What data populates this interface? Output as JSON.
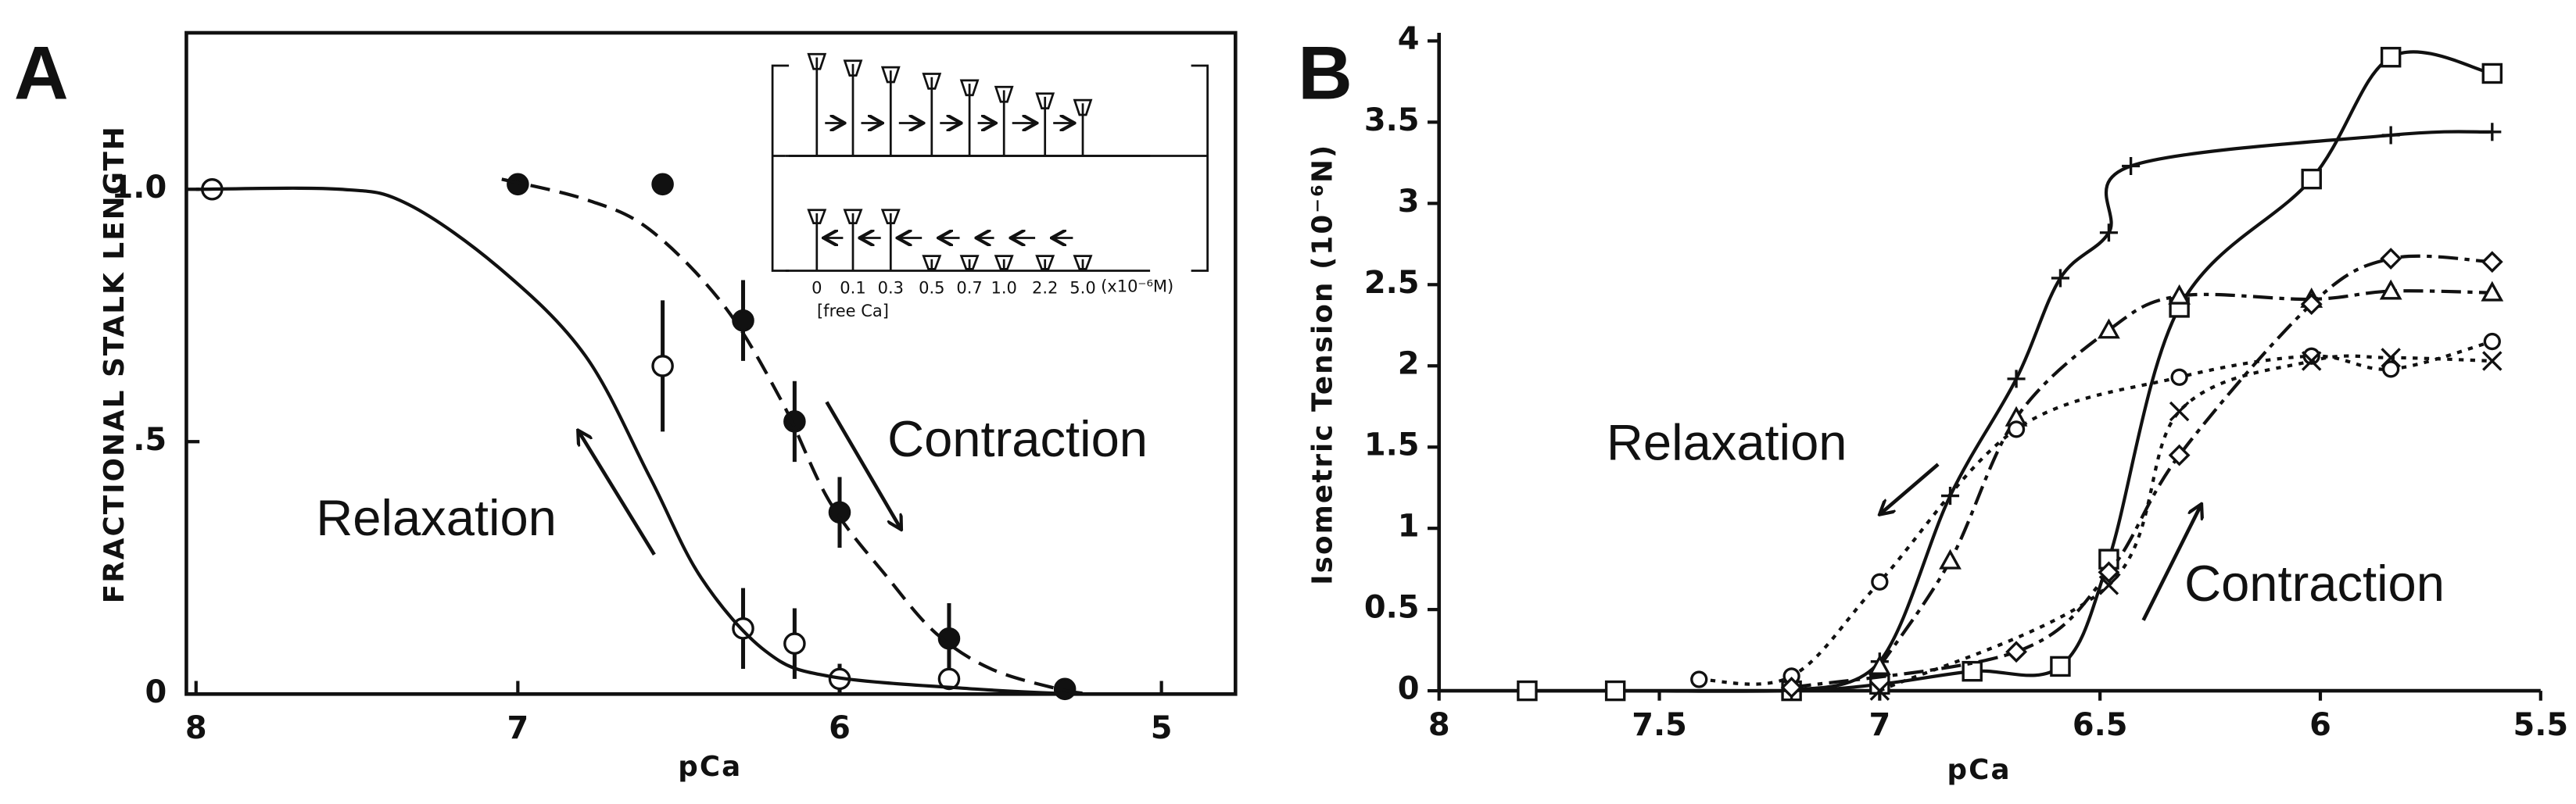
{
  "chart_data": [
    {
      "type": "scatter",
      "panel_label": "A",
      "x_label": "pCa",
      "y_label": "FRACTIONAL STALK LENGTH",
      "xlim": [
        8.03,
        4.77
      ],
      "ylim": [
        0,
        1.31
      ],
      "xticks": [
        8,
        7,
        6,
        5
      ],
      "yticks": [
        0,
        {
          "value": 0.5,
          "label": ".5"
        },
        {
          "value": 1,
          "label": "1.0"
        }
      ],
      "annotations": [
        "Contraction",
        "Relaxation"
      ],
      "inset": {
        "labels": [
          "0",
          "0.1",
          "0.3",
          "0.5",
          "0.7",
          "1.0",
          "2.2",
          "5.0"
        ],
        "unit": "(x10⁻⁶M)",
        "caption": "[free Ca]"
      },
      "series": [
        {
          "color": "#111",
          "marker": "filled-circle",
          "line": "none",
          "x": [
            7.0,
            6.55,
            6.3,
            6.14,
            6.0,
            5.66,
            5.3
          ],
          "values": [
            1.01,
            1.01,
            0.74,
            0.54,
            0.36,
            0.11,
            0.01
          ],
          "errors": [
            null,
            null,
            0.08,
            0.08,
            0.07,
            0.07,
            null
          ]
        },
        {
          "color": "#111",
          "marker": "open-circle",
          "line": "none",
          "x": [
            7.95,
            6.55,
            6.3,
            6.14,
            6.0,
            5.66
          ],
          "values": [
            1.0,
            0.65,
            0.13,
            0.1,
            0.03,
            0.03
          ],
          "errors": [
            null,
            0.13,
            0.08,
            0.07,
            0.03,
            null
          ]
        },
        {
          "color": "#111",
          "marker": "none",
          "line": "solid",
          "x": [
            8,
            7.55,
            7.34,
            7.05,
            6.79,
            6.59,
            6.43,
            6.23,
            6.03,
            5.58,
            5.27
          ],
          "values": [
            1,
            1,
            0.97,
            0.84,
            0.67,
            0.43,
            0.23,
            0.085,
            0.035,
            0.01,
            0
          ]
        },
        {
          "color": "#111",
          "marker": "none",
          "line": "dashed",
          "x": [
            7.05,
            6.79,
            6.59,
            6.36,
            6.18,
            6.03,
            5.85,
            5.7,
            5.53,
            5.32,
            5.22
          ],
          "values": [
            1.02,
            0.98,
            0.92,
            0.77,
            0.58,
            0.38,
            0.23,
            0.12,
            0.05,
            0.01,
            0
          ]
        }
      ]
    },
    {
      "type": "scatter",
      "panel_label": "B",
      "x_label": "pCa",
      "y_label": "Isometric Tension (10⁻⁶N)",
      "xlim": [
        8,
        5.5
      ],
      "ylim": [
        0,
        4.05
      ],
      "xticks": [
        8,
        7.5,
        7,
        6.5,
        6,
        5.5
      ],
      "yticks": [
        0,
        0.5,
        1,
        1.5,
        2,
        2.5,
        3,
        3.5,
        4
      ],
      "annotations": [
        "Relaxation",
        "Contraction"
      ],
      "series": [
        {
          "color": "#111",
          "marker": "square",
          "line": "solid",
          "x": [
            7.8,
            7.6,
            7.2,
            7.0,
            6.79,
            6.59,
            6.48,
            6.32,
            6.02,
            5.84,
            5.61
          ],
          "values": [
            0,
            0,
            0,
            0.04,
            0.12,
            0.15,
            0.81,
            2.36,
            3.15,
            3.9,
            3.8
          ]
        },
        {
          "color": "#111",
          "marker": "plus",
          "line": "solid",
          "x": [
            7.2,
            7.0,
            6.84,
            6.69,
            6.59,
            6.48,
            6.43,
            5.84,
            5.61
          ],
          "values": [
            0,
            0.18,
            1.2,
            1.92,
            2.54,
            2.82,
            3.23,
            3.42,
            3.44
          ]
        },
        {
          "color": "#111",
          "marker": "triangle",
          "line": "dashdot",
          "x": [
            7.0,
            6.84,
            6.69,
            6.48,
            6.32,
            6.02,
            5.84,
            5.61
          ],
          "values": [
            0.15,
            0.8,
            1.68,
            2.22,
            2.43,
            2.41,
            2.46,
            2.45
          ]
        },
        {
          "color": "#111",
          "marker": "circle",
          "line": "dotted",
          "x": [
            7.41,
            7.2,
            7.0,
            6.69,
            6.32,
            6.02,
            5.84,
            5.61
          ],
          "values": [
            0.07,
            0.09,
            0.67,
            1.61,
            1.93,
            2.06,
            1.98,
            2.15
          ]
        },
        {
          "color": "#111",
          "marker": "diamond",
          "line": "dashdot",
          "x": [
            7.2,
            6.69,
            6.48,
            6.32,
            6.02,
            5.84,
            5.61
          ],
          "values": [
            0.02,
            0.24,
            0.73,
            1.45,
            2.38,
            2.66,
            2.64
          ]
        },
        {
          "color": "#111",
          "marker": "x",
          "line": "dotted",
          "x": [
            7.0,
            6.48,
            6.32,
            6.02,
            5.84,
            5.61
          ],
          "values": [
            0,
            0.65,
            1.72,
            2.03,
            2.05,
            2.03
          ]
        }
      ]
    }
  ]
}
